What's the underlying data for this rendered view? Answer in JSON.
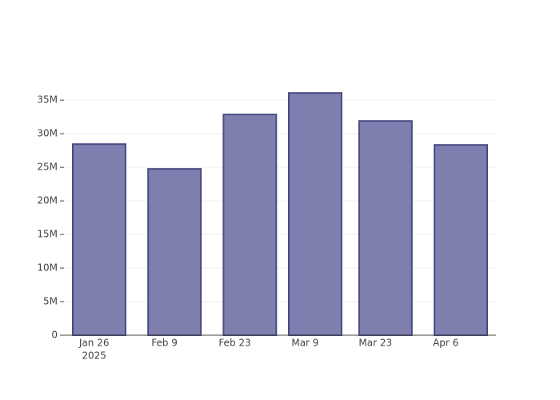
{
  "chart_data": {
    "type": "bar",
    "x": [
      "2025-01-27",
      "2025-02-11",
      "2025-02-26",
      "2025-03-11",
      "2025-03-25",
      "2025-04-09"
    ],
    "values": [
      28450000,
      24760000,
      32860000,
      36070000,
      31900000,
      28330000
    ],
    "color": "#7f7faf",
    "line_color": "#4a4a85",
    "xlim": [
      "2025-01-20",
      "2025-04-16"
    ],
    "xticks": [
      {
        "value": "2025-01-26",
        "label": "Jan 26",
        "year": "2025"
      },
      {
        "value": "2025-02-09",
        "label": "Feb 9"
      },
      {
        "value": "2025-02-23",
        "label": "Feb 23"
      },
      {
        "value": "2025-03-09",
        "label": "Mar 9"
      },
      {
        "value": "2025-03-23",
        "label": "Mar 23"
      },
      {
        "value": "2025-04-06",
        "label": "Apr 6"
      }
    ],
    "ylim": [
      0,
      38000000
    ],
    "yticks": [
      0,
      {
        "value": 5000000,
        "label": "5M"
      },
      {
        "value": 10000000,
        "label": "10M"
      },
      {
        "value": 15000000,
        "label": "15M"
      },
      {
        "value": 20000000,
        "label": "20M"
      },
      {
        "value": 25000000,
        "label": "25M"
      },
      {
        "value": 30000000,
        "label": "30M"
      },
      {
        "value": 35000000,
        "label": "35M"
      }
    ],
    "grid": true
  }
}
